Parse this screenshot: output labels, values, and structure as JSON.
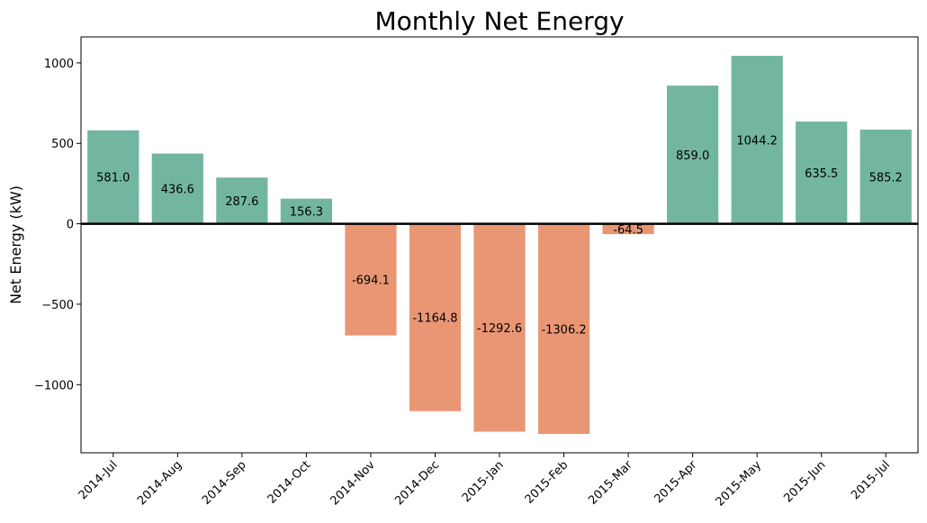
{
  "chart_data": {
    "type": "bar",
    "title": "Monthly Net Energy",
    "xlabel": "",
    "ylabel": "Net Energy (kW)",
    "categories": [
      "2014-Jul",
      "2014-Aug",
      "2014-Sep",
      "2014-Oct",
      "2014-Nov",
      "2014-Dec",
      "2015-Jan",
      "2015-Feb",
      "2015-Mar",
      "2015-Apr",
      "2015-May",
      "2015-Jun",
      "2015-Jul"
    ],
    "values": [
      581.0,
      436.6,
      287.6,
      156.3,
      -694.1,
      -1164.8,
      -1292.6,
      -1306.2,
      -64.5,
      859.0,
      1044.2,
      635.5,
      585.2
    ],
    "data_labels": [
      "581.0",
      "436.6",
      "287.6",
      "156.3",
      "-694.1",
      "-1164.8",
      "-1292.6",
      "-1306.2",
      "-64.5",
      "859.0",
      "1044.2",
      "635.5",
      "585.2"
    ],
    "ylim": [
      -1423.7,
      1161.7
    ],
    "yticks": [
      -1000,
      -500,
      0,
      500,
      1000
    ],
    "ytick_labels": [
      "−1000",
      "−500",
      "0",
      "500",
      "1000"
    ],
    "positive_color": "#72b6a1",
    "negative_color": "#e99675",
    "zero_line": true,
    "grid": false
  }
}
